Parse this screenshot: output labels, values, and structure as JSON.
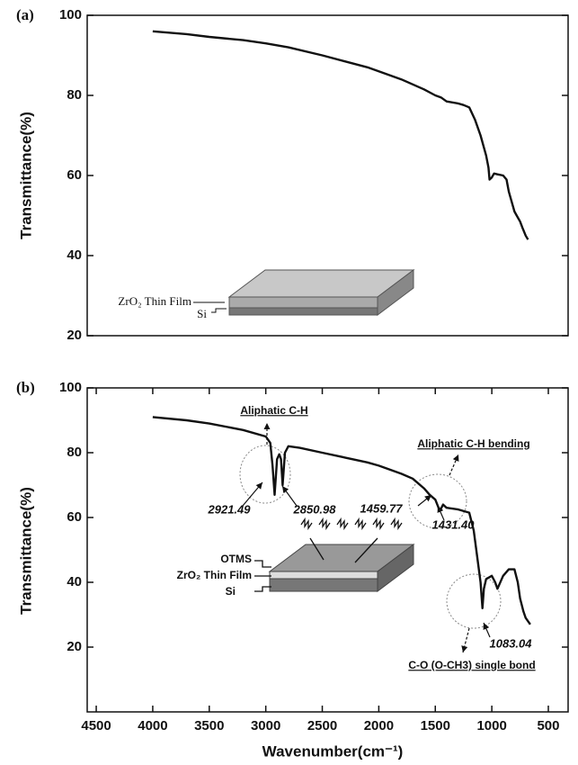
{
  "chart_data": [
    {
      "type": "line",
      "panel_label": "(a)",
      "ylabel": "Transmittance(%)",
      "xlim": [
        4580,
        325
      ],
      "ylim": [
        20,
        100
      ],
      "yticks": [
        20,
        40,
        60,
        80,
        100
      ],
      "color": "#111111",
      "x": [
        4000,
        3700,
        3500,
        3200,
        3000,
        2800,
        2500,
        2300,
        2100,
        2000,
        1800,
        1600,
        1500,
        1450,
        1400,
        1300,
        1250,
        1200,
        1150,
        1100,
        1050,
        1030,
        1020,
        1000,
        980,
        950,
        900,
        870,
        850,
        820,
        800,
        780,
        750,
        730,
        700,
        680
      ],
      "values": [
        96,
        95.3,
        94.6,
        93.8,
        93,
        92,
        90,
        88.5,
        87,
        86,
        84,
        81.5,
        80,
        79.5,
        78.5,
        78,
        77.6,
        77,
        74,
        70,
        65,
        62,
        59,
        59.5,
        60.5,
        60.3,
        60,
        59,
        56,
        53,
        51,
        50,
        48.5,
        47,
        45,
        44
      ],
      "inset_labels": [
        "ZrO₂ Thin Film",
        "Si"
      ]
    },
    {
      "type": "line",
      "panel_label": "(b)",
      "ylabel": "Transmittance(%)",
      "xlabel": "Wavenumber(cm⁻¹)",
      "xlim": [
        4580,
        325
      ],
      "ylim": [
        0,
        100
      ],
      "yticks": [
        20,
        40,
        60,
        80,
        100
      ],
      "xticks": [
        4500,
        4000,
        3500,
        3000,
        2500,
        2000,
        1500,
        1000,
        500
      ],
      "color": "#111111",
      "x": [
        4000,
        3700,
        3500,
        3200,
        3000,
        2960,
        2940,
        2921.49,
        2900,
        2880,
        2865,
        2850.98,
        2830,
        2800,
        2700,
        2500,
        2300,
        2100,
        2000,
        1800,
        1700,
        1600,
        1550,
        1500,
        1459.77,
        1431.4,
        1400,
        1300,
        1200,
        1160,
        1130,
        1100,
        1083.04,
        1070,
        1050,
        1000,
        970,
        950,
        900,
        850,
        800,
        770,
        750,
        720,
        700,
        660
      ],
      "values": [
        91,
        90,
        89,
        87,
        85,
        83,
        76,
        67,
        78,
        79.5,
        78,
        70,
        80,
        82,
        81.5,
        80,
        78.5,
        77,
        76,
        73.5,
        72,
        69,
        67,
        65.5,
        62,
        64,
        63,
        62.5,
        61.5,
        56,
        48,
        40,
        32,
        38,
        41,
        42,
        40,
        38,
        42,
        44,
        44,
        40,
        35,
        31,
        29,
        27
      ],
      "annotations": [
        "Aliphatic C-H",
        "Aliphatic C-H bending",
        "C-O (O-CH3) single bond"
      ],
      "peak_labels": [
        2921.49,
        2850.98,
        1459.77,
        {
          "value": 1431.4,
          "label": "1431.40"
        },
        1083.04
      ],
      "inset_labels": [
        "OTMS",
        "ZrO₂ Thin Film",
        "Si"
      ]
    }
  ]
}
